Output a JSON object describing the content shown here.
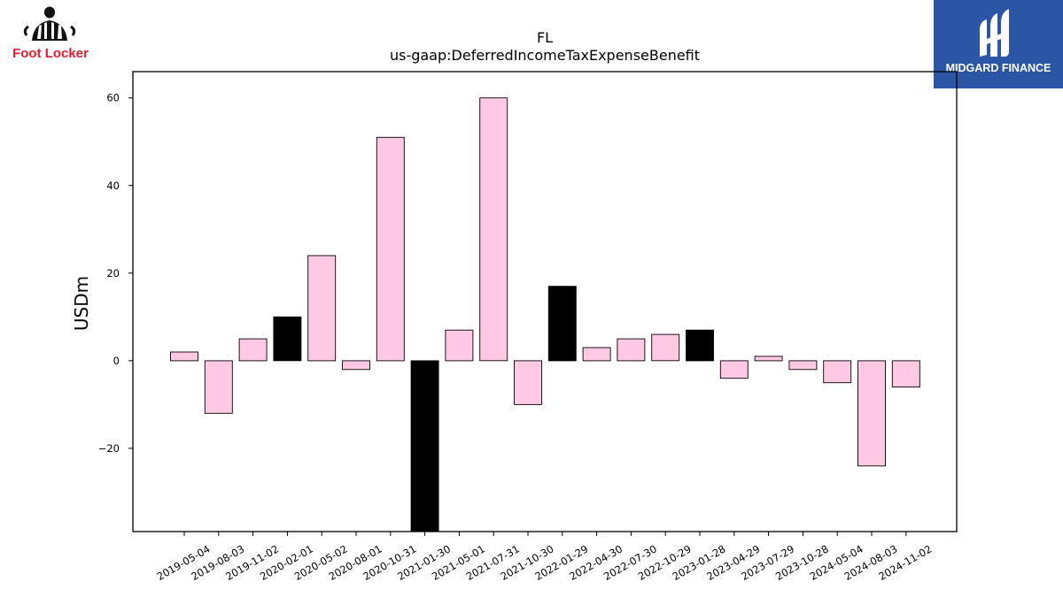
{
  "brand": {
    "logo_text": "Foot Locker",
    "logo_icon": "referee-icon",
    "accent": "#e0202f"
  },
  "sponsor": {
    "name": "MIDGARD FINANCE",
    "logo_icon": "midgard-mark-icon",
    "background": "#2b56a6"
  },
  "chart_data": {
    "type": "bar",
    "title": "FL",
    "subtitle": "us-gaap:DeferredIncomeTaxExpenseBenefit",
    "xlabel": "",
    "ylabel": "USDm",
    "ylim": [
      -39,
      66
    ],
    "yticks": [
      -20,
      0,
      20,
      40,
      60
    ],
    "ytick_labels": [
      "−20",
      "0",
      "20",
      "40",
      "60"
    ],
    "grid": false,
    "legend": "none",
    "colors": {
      "default": "#ffc9e3",
      "highlight": "#000000",
      "edge": "#000000"
    },
    "categories": [
      "2019-05-04",
      "2019-08-03",
      "2019-11-02",
      "2020-02-01",
      "2020-05-02",
      "2020-08-01",
      "2020-10-31",
      "2021-01-30",
      "2021-05-01",
      "2021-07-31",
      "2021-10-30",
      "2022-01-29",
      "2022-04-30",
      "2022-07-30",
      "2022-10-29",
      "2023-01-28",
      "2023-04-29",
      "2023-07-29",
      "2023-10-28",
      "2024-05-04",
      "2024-08-03",
      "2024-11-02"
    ],
    "values": [
      2,
      -12,
      5,
      10,
      24,
      -2,
      51,
      -40,
      7,
      60,
      -10,
      17,
      3,
      5,
      6,
      7,
      -4,
      1,
      -2,
      -5,
      -24,
      -6
    ],
    "highlighted": [
      false,
      false,
      false,
      true,
      false,
      false,
      false,
      true,
      false,
      false,
      false,
      true,
      false,
      false,
      false,
      true,
      false,
      false,
      false,
      false,
      false,
      false
    ]
  }
}
